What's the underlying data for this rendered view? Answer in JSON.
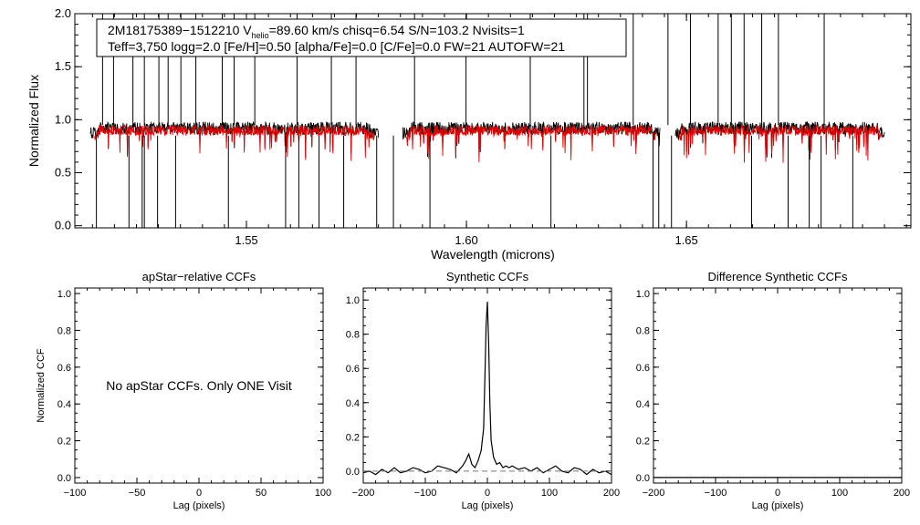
{
  "chart_data": [
    {
      "type": "line",
      "panel": "spectrum",
      "title": "",
      "xlabel": "Wavelength (microns)",
      "ylabel": "Normalized Flux",
      "xlim": [
        1.511,
        1.701
      ],
      "ylim": [
        -0.02,
        2.0
      ],
      "xticks": [
        1.55,
        1.6,
        1.65
      ],
      "xtick_labels": [
        "1.55",
        "1.60",
        "1.65"
      ],
      "yticks": [
        0.0,
        0.5,
        1.0,
        1.5,
        2.0
      ],
      "ytick_labels": [
        "0.0",
        "0.5",
        "1.0",
        "1.5",
        "2.0"
      ],
      "chips": [
        [
          1.5145,
          1.58
        ],
        [
          1.5855,
          1.644
        ],
        [
          1.6475,
          1.695
        ]
      ],
      "series": [
        {
          "name": "observed",
          "color": "#000000",
          "continuum": 0.92
        },
        {
          "name": "synthetic",
          "color": "#e00000",
          "continuum": 0.92
        }
      ],
      "upward_spikes": [
        1.5173,
        1.5198,
        1.5242,
        1.5268,
        1.5301,
        1.5322,
        1.5351,
        1.5385,
        1.5445,
        1.5472,
        1.5519,
        1.5615,
        1.5693,
        1.5749,
        1.5882,
        1.5999,
        1.6145,
        1.6267,
        1.6275,
        1.6379,
        1.6458,
        1.6509,
        1.6572,
        1.6602,
        1.6631,
        1.6671,
        1.6709,
        1.6813
      ],
      "downward_spikes": [
        1.5159,
        1.5233,
        1.5263,
        1.5268,
        1.5298,
        1.5339,
        1.5459,
        1.5589,
        1.5619,
        1.5665,
        1.5721,
        1.5796,
        1.5834,
        1.5917,
        1.6192,
        1.6424,
        1.6437,
        1.6466,
        1.6648,
        1.6731,
        1.6779,
        1.6806,
        1.6878
      ],
      "info_box": {
        "line1_prefix": "2M18175389−1512210  V",
        "line1_sub": "helio",
        "line1_suffix": "=89.60 km/s  chisq=6.54  S/N=103.2  Nvisits=1",
        "line2": "Teff=3,750 logg=2.0 [Fe/H]=0.50 [alpha/Fe]=0.0 [C/Fe]=0.0 FW=21 AUTOFW=21"
      }
    },
    {
      "type": "line",
      "panel": "apstar-ccf",
      "title": "apStar−relative CCFs",
      "xlabel": "Lag (pixels)",
      "ylabel": "Normalized CCF",
      "xlim": [
        -100,
        100
      ],
      "ylim": [
        -0.03,
        1.03
      ],
      "xticks": [
        -100,
        -50,
        0,
        50,
        100
      ],
      "xtick_labels": [
        "−100",
        "−50",
        "0",
        "50",
        "100"
      ],
      "yticks": [
        0.0,
        0.2,
        0.4,
        0.6,
        0.8,
        1.0
      ],
      "ytick_labels": [
        "0.0",
        "0.2",
        "0.4",
        "0.6",
        "0.8",
        "1.0"
      ],
      "annotation": "No apStar CCFs.  Only ONE Visit",
      "series": []
    },
    {
      "type": "line",
      "panel": "synthetic-ccf",
      "title": "Synthetic CCFs",
      "xlabel": "Lag (pixels)",
      "ylabel": "",
      "xlim": [
        -200,
        200
      ],
      "ylim": [
        -0.07,
        1.07
      ],
      "xticks": [
        -200,
        -100,
        0,
        100,
        200
      ],
      "xtick_labels": [
        "−200",
        "−100",
        "0",
        "100",
        "200"
      ],
      "yticks": [
        0.0,
        0.2,
        0.4,
        0.6,
        0.8,
        1.0
      ],
      "ytick_labels": [
        "0.0",
        "0.2",
        "0.4",
        "0.6",
        "0.8",
        "1.0"
      ],
      "series": [
        {
          "name": "CCF",
          "color": "#000000",
          "x": [
            -200,
            -190,
            -180,
            -170,
            -160,
            -150,
            -140,
            -130,
            -120,
            -110,
            -100,
            -90,
            -80,
            -70,
            -60,
            -50,
            -40,
            -35,
            -30,
            -25,
            -20,
            -15,
            -10,
            -6,
            -4,
            -2,
            0,
            2,
            4,
            6,
            10,
            15,
            20,
            25,
            30,
            35,
            40,
            50,
            60,
            70,
            80,
            90,
            100,
            110,
            120,
            130,
            140,
            150,
            160,
            170,
            180,
            190,
            200
          ],
          "y": [
            -0.01,
            0.0,
            -0.02,
            0.01,
            -0.01,
            0.02,
            -0.01,
            0.0,
            0.02,
            0.01,
            -0.01,
            0.0,
            0.03,
            0.02,
            0.01,
            -0.01,
            0.03,
            0.06,
            0.1,
            0.04,
            0.02,
            0.06,
            0.12,
            0.25,
            0.55,
            0.85,
            0.99,
            0.75,
            0.4,
            0.18,
            0.08,
            0.04,
            0.05,
            0.02,
            0.03,
            0.02,
            0.03,
            0.01,
            0.02,
            0.0,
            0.02,
            -0.01,
            0.01,
            0.03,
            0.0,
            -0.01,
            0.02,
            0.01,
            -0.02,
            0.01,
            -0.01,
            0.0,
            -0.02
          ]
        },
        {
          "name": "zero-level",
          "color": "#777777",
          "style": "dashed",
          "x": [
            -200,
            200
          ],
          "y": [
            0.0,
            0.0
          ]
        }
      ]
    },
    {
      "type": "line",
      "panel": "difference-ccf",
      "title": "Difference Synthetic CCFs",
      "xlabel": "Lag (pixels)",
      "ylabel": "",
      "xlim": [
        -200,
        200
      ],
      "ylim": [
        -0.03,
        1.03
      ],
      "xticks": [
        -200,
        -100,
        0,
        100,
        200
      ],
      "xtick_labels": [
        "−200",
        "−100",
        "0",
        "100",
        "200"
      ],
      "yticks": [
        0.0,
        0.2,
        0.4,
        0.6,
        0.8,
        1.0
      ],
      "ytick_labels": [
        "0.0",
        "0.2",
        "0.4",
        "0.6",
        "0.8",
        "1.0"
      ],
      "series": [
        {
          "name": "difference",
          "color": "#000000",
          "x": [
            -200,
            200
          ],
          "y": [
            0.0,
            0.0
          ]
        }
      ]
    }
  ]
}
